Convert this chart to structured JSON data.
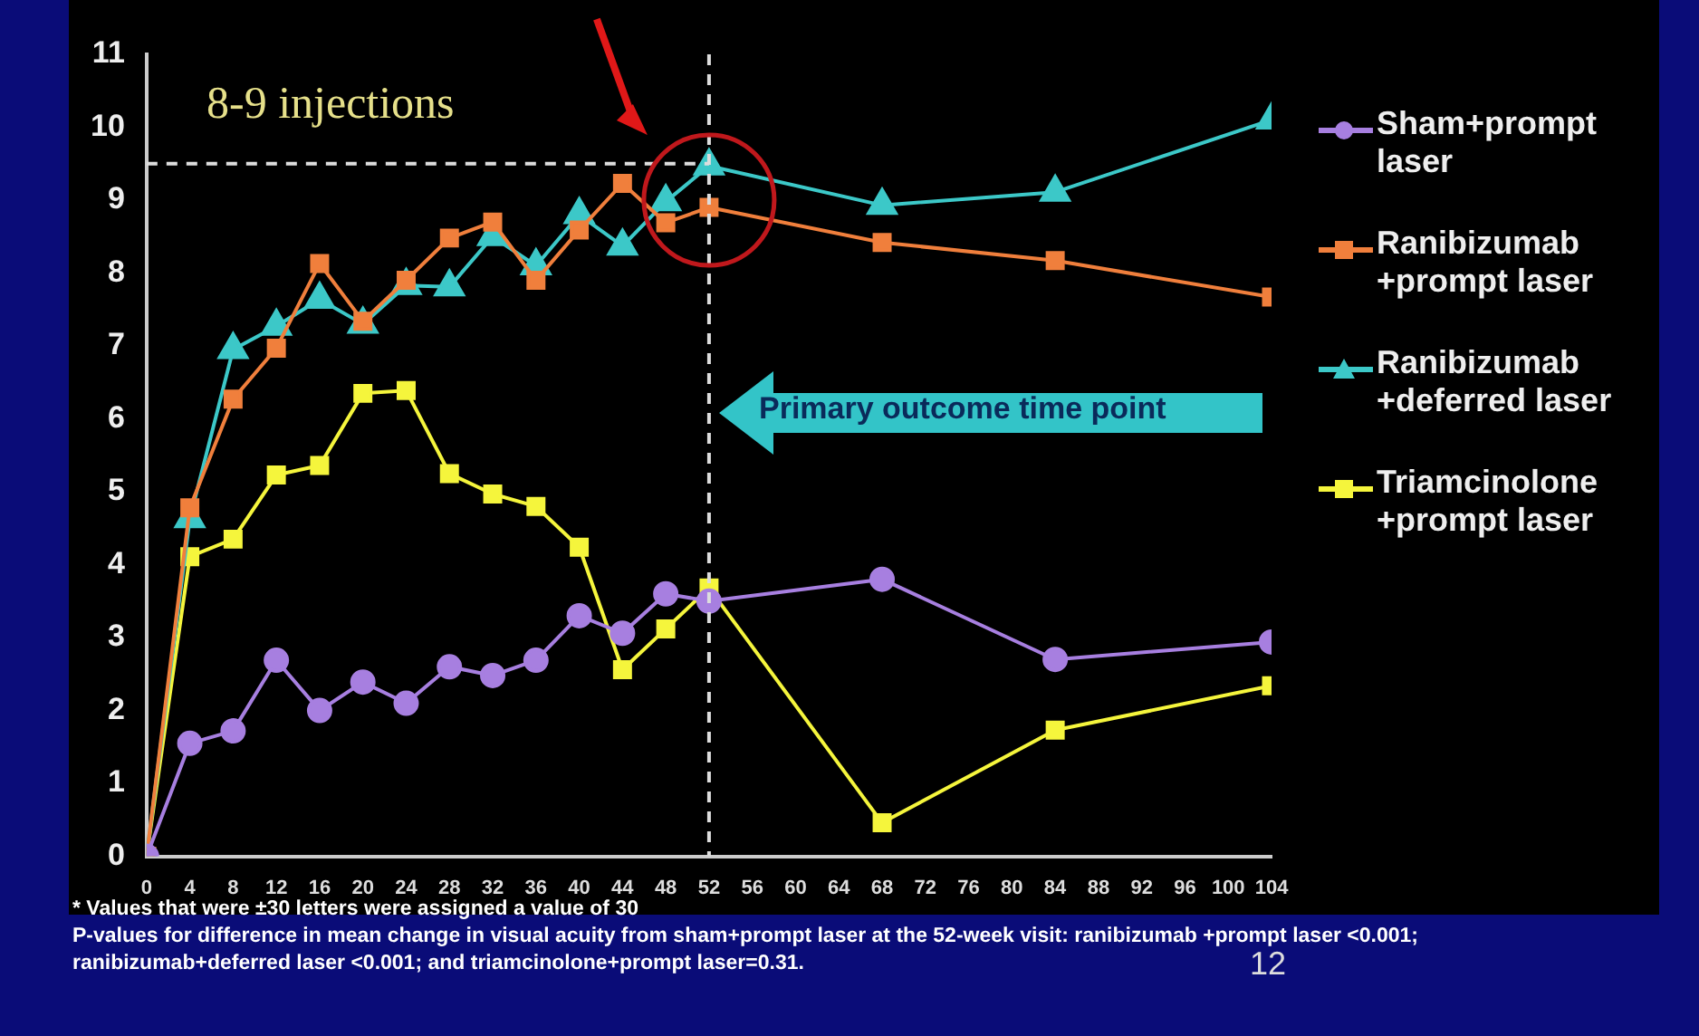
{
  "chart_data": {
    "type": "line",
    "x": [
      0,
      4,
      8,
      12,
      16,
      20,
      24,
      28,
      32,
      36,
      40,
      44,
      48,
      52,
      68,
      84,
      104
    ],
    "series": [
      {
        "name": "Sham+prompt laser",
        "color": "#a77fe0",
        "marker": "circle",
        "values": [
          0,
          1.55,
          1.72,
          2.69,
          2.0,
          2.39,
          2.1,
          2.6,
          2.48,
          2.69,
          3.3,
          3.06,
          3.6,
          3.5,
          3.8,
          2.7,
          2.94
        ]
      },
      {
        "name": "Ranibizumab +prompt laser",
        "color": "#f07f3c",
        "marker": "square",
        "values": [
          0,
          4.78,
          6.27,
          6.97,
          8.13,
          7.34,
          7.9,
          8.48,
          8.7,
          7.9,
          8.59,
          9.23,
          8.69,
          8.9,
          8.42,
          8.17,
          7.67
        ]
      },
      {
        "name": "Ranibizumab +deferred laser",
        "color": "#3cc8c8",
        "marker": "triangle",
        "values": [
          0,
          4.63,
          6.95,
          7.27,
          7.64,
          7.3,
          7.83,
          7.81,
          8.5,
          8.1,
          8.8,
          8.37,
          8.98,
          9.47,
          8.93,
          9.11,
          10.1
        ]
      },
      {
        "name": "Triamcinolone +prompt laser",
        "color": "#f5f53c",
        "marker": "square",
        "values": [
          0,
          4.11,
          4.35,
          5.23,
          5.36,
          6.35,
          6.39,
          5.25,
          4.97,
          4.8,
          4.24,
          2.56,
          3.12,
          3.68,
          0.46,
          1.73,
          2.34
        ]
      }
    ],
    "xlim": [
      0,
      104
    ],
    "xticks": [
      0,
      4,
      8,
      12,
      16,
      20,
      24,
      28,
      32,
      36,
      40,
      44,
      48,
      52,
      56,
      60,
      64,
      68,
      72,
      76,
      80,
      84,
      88,
      92,
      96,
      100,
      104
    ],
    "ylim": [
      0,
      11
    ],
    "yticks": [
      0,
      1,
      2,
      3,
      4,
      5,
      6,
      7,
      8,
      9,
      10,
      11
    ],
    "grid": false,
    "legend": "right",
    "line_style": "solid",
    "ref_lines": [
      {
        "axis": "y",
        "value": 9.5,
        "color": "#dddddd",
        "line_style": "dashed"
      },
      {
        "axis": "x",
        "value": 52,
        "color": "#dddddd",
        "line_style": "dashed"
      }
    ],
    "annotations": [
      "8-9 injections",
      "Primary outcome time point",
      "* Values that were ±30 letters were assigned a value of 30",
      "P-values for difference in mean change in visual  acuity  from sham+prompt laser at the 52-week visit: ranibizumab +prompt laser <0.001; ranibizumab+deferred laser <0.001; and triamcinolone+prompt laser=0.31.",
      "12"
    ]
  }
}
